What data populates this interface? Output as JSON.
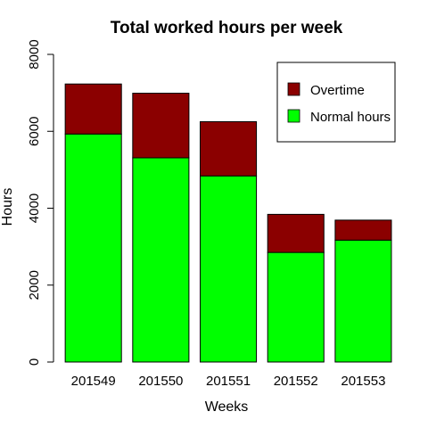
{
  "chart_data": {
    "type": "bar",
    "stacked": true,
    "title": "Total worked hours per week",
    "xlabel": "Weeks",
    "ylabel": "Hours",
    "ylim": [
      0,
      8000
    ],
    "yticks": [
      "0",
      "2000",
      "4000",
      "6000",
      "8000"
    ],
    "categories": [
      "201549",
      "201550",
      "201551",
      "201552",
      "201553"
    ],
    "series": [
      {
        "name": "Normal hours",
        "color": "#00ff00",
        "values": [
          5930,
          5310,
          4840,
          2850,
          3170
        ]
      },
      {
        "name": "Overtime",
        "color": "#8b0000",
        "values": [
          1300,
          1680,
          1410,
          990,
          520
        ]
      }
    ],
    "legend": {
      "position": "top-right",
      "entries": [
        "Overtime",
        "Normal hours"
      ]
    },
    "grid": false
  }
}
